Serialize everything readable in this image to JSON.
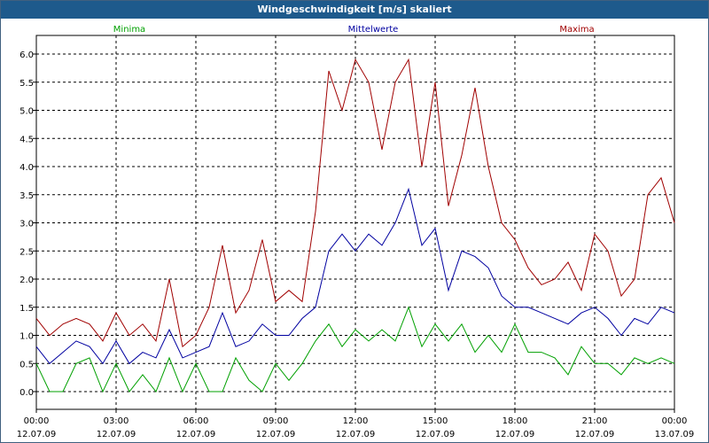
{
  "window": {
    "title": "Windgeschwindigkeit [m/s] skaliert"
  },
  "colors": {
    "min": "#00a000",
    "mean": "#0000a0",
    "max": "#a00000",
    "grid": "#000000",
    "background": "#ffffff",
    "title_bar": "#1e5a8c"
  },
  "chart_data": {
    "type": "line",
    "title": "Windgeschwindigkeit [m/s] skaliert",
    "xlabel": "",
    "ylabel": "",
    "ylim": [
      0,
      6.2
    ],
    "y_ticks": [
      "0.0",
      "0.5",
      "1.0",
      "1.5",
      "2.0",
      "2.5",
      "3.0",
      "3.5",
      "4.0",
      "4.5",
      "5.0",
      "5.5",
      "6.0"
    ],
    "x_ticks": [
      {
        "time": "00:00",
        "date": "12.07.09"
      },
      {
        "time": "03:00",
        "date": "12.07.09"
      },
      {
        "time": "06:00",
        "date": "12.07.09"
      },
      {
        "time": "09:00",
        "date": "12.07.09"
      },
      {
        "time": "12:00",
        "date": "12.07.09"
      },
      {
        "time": "15:00",
        "date": "12.07.09"
      },
      {
        "time": "18:00",
        "date": "12.07.09"
      },
      {
        "time": "21:00",
        "date": "12.07.09"
      },
      {
        "time": "00:00",
        "date": "13.07.09"
      }
    ],
    "x_unit_hours": [
      0,
      24
    ],
    "grid": true,
    "legend": "top",
    "series": [
      {
        "name": "Minima",
        "color": "#00a000",
        "x_hours": [
          0,
          0.5,
          1,
          1.5,
          2,
          2.5,
          3,
          3.5,
          4,
          4.5,
          5,
          5.5,
          6,
          6.5,
          7,
          7.5,
          8,
          8.5,
          9,
          9.5,
          10,
          10.5,
          11,
          11.5,
          12,
          12.5,
          13,
          13.5,
          14,
          14.5,
          15,
          15.5,
          16,
          16.5,
          17,
          17.5,
          18,
          18.5,
          19,
          19.5,
          20,
          20.5,
          21,
          21.5,
          22,
          22.5,
          23,
          23.5,
          24
        ],
        "values": [
          0.5,
          0,
          0,
          0.5,
          0.6,
          0,
          0.5,
          0,
          0.3,
          0,
          0.6,
          0,
          0.5,
          0,
          0,
          0.6,
          0.2,
          0,
          0.5,
          0.2,
          0.5,
          0.9,
          1.2,
          0.8,
          1.1,
          0.9,
          1.1,
          0.9,
          1.5,
          0.8,
          1.2,
          0.9,
          1.2,
          0.7,
          1.0,
          0.7,
          1.2,
          0.7,
          0.7,
          0.6,
          0.3,
          0.8,
          0.5,
          0.5,
          0.3,
          0.6,
          0.5,
          0.6,
          0.5
        ]
      },
      {
        "name": "Mittelwerte",
        "color": "#0000a0",
        "x_hours": [
          0,
          0.5,
          1,
          1.5,
          2,
          2.5,
          3,
          3.5,
          4,
          4.5,
          5,
          5.5,
          6,
          6.5,
          7,
          7.5,
          8,
          8.5,
          9,
          9.5,
          10,
          10.5,
          11,
          11.5,
          12,
          12.5,
          13,
          13.5,
          14,
          14.5,
          15,
          15.5,
          16,
          16.5,
          17,
          17.5,
          18,
          18.5,
          19,
          19.5,
          20,
          20.5,
          21,
          21.5,
          22,
          22.5,
          23,
          23.5,
          24
        ],
        "values": [
          0.8,
          0.5,
          0.7,
          0.9,
          0.8,
          0.5,
          0.9,
          0.5,
          0.7,
          0.6,
          1.1,
          0.6,
          0.7,
          0.8,
          1.4,
          0.8,
          0.9,
          1.2,
          1.0,
          1.0,
          1.3,
          1.5,
          2.5,
          2.8,
          2.5,
          2.8,
          2.6,
          3.0,
          3.6,
          2.6,
          2.9,
          1.8,
          2.5,
          2.4,
          2.2,
          1.7,
          1.5,
          1.5,
          1.4,
          1.3,
          1.2,
          1.4,
          1.5,
          1.3,
          1.0,
          1.3,
          1.2,
          1.5,
          1.4
        ]
      },
      {
        "name": "Maxima",
        "color": "#a00000",
        "x_hours": [
          0,
          0.5,
          1,
          1.5,
          2,
          2.5,
          3,
          3.5,
          4,
          4.5,
          5,
          5.5,
          6,
          6.5,
          7,
          7.5,
          8,
          8.5,
          9,
          9.5,
          10,
          10.5,
          11,
          11.5,
          12,
          12.5,
          13,
          13.5,
          14,
          14.5,
          15,
          15.5,
          16,
          16.5,
          17,
          17.5,
          18,
          18.5,
          19,
          19.5,
          20,
          20.5,
          21,
          21.5,
          22,
          22.5,
          23,
          23.5,
          24
        ],
        "values": [
          1.3,
          1.0,
          1.2,
          1.3,
          1.2,
          0.9,
          1.4,
          1.0,
          1.2,
          0.9,
          2.0,
          0.8,
          1.0,
          1.5,
          2.6,
          1.4,
          1.8,
          2.7,
          1.6,
          1.8,
          1.6,
          3.2,
          5.7,
          5.0,
          5.9,
          5.5,
          4.3,
          5.5,
          5.9,
          4.0,
          5.5,
          3.3,
          4.2,
          5.4,
          4.0,
          3.0,
          2.7,
          2.2,
          1.9,
          2.0,
          2.3,
          1.8,
          2.8,
          2.5,
          1.7,
          2.0,
          3.5,
          3.8,
          3.0
        ]
      }
    ]
  }
}
